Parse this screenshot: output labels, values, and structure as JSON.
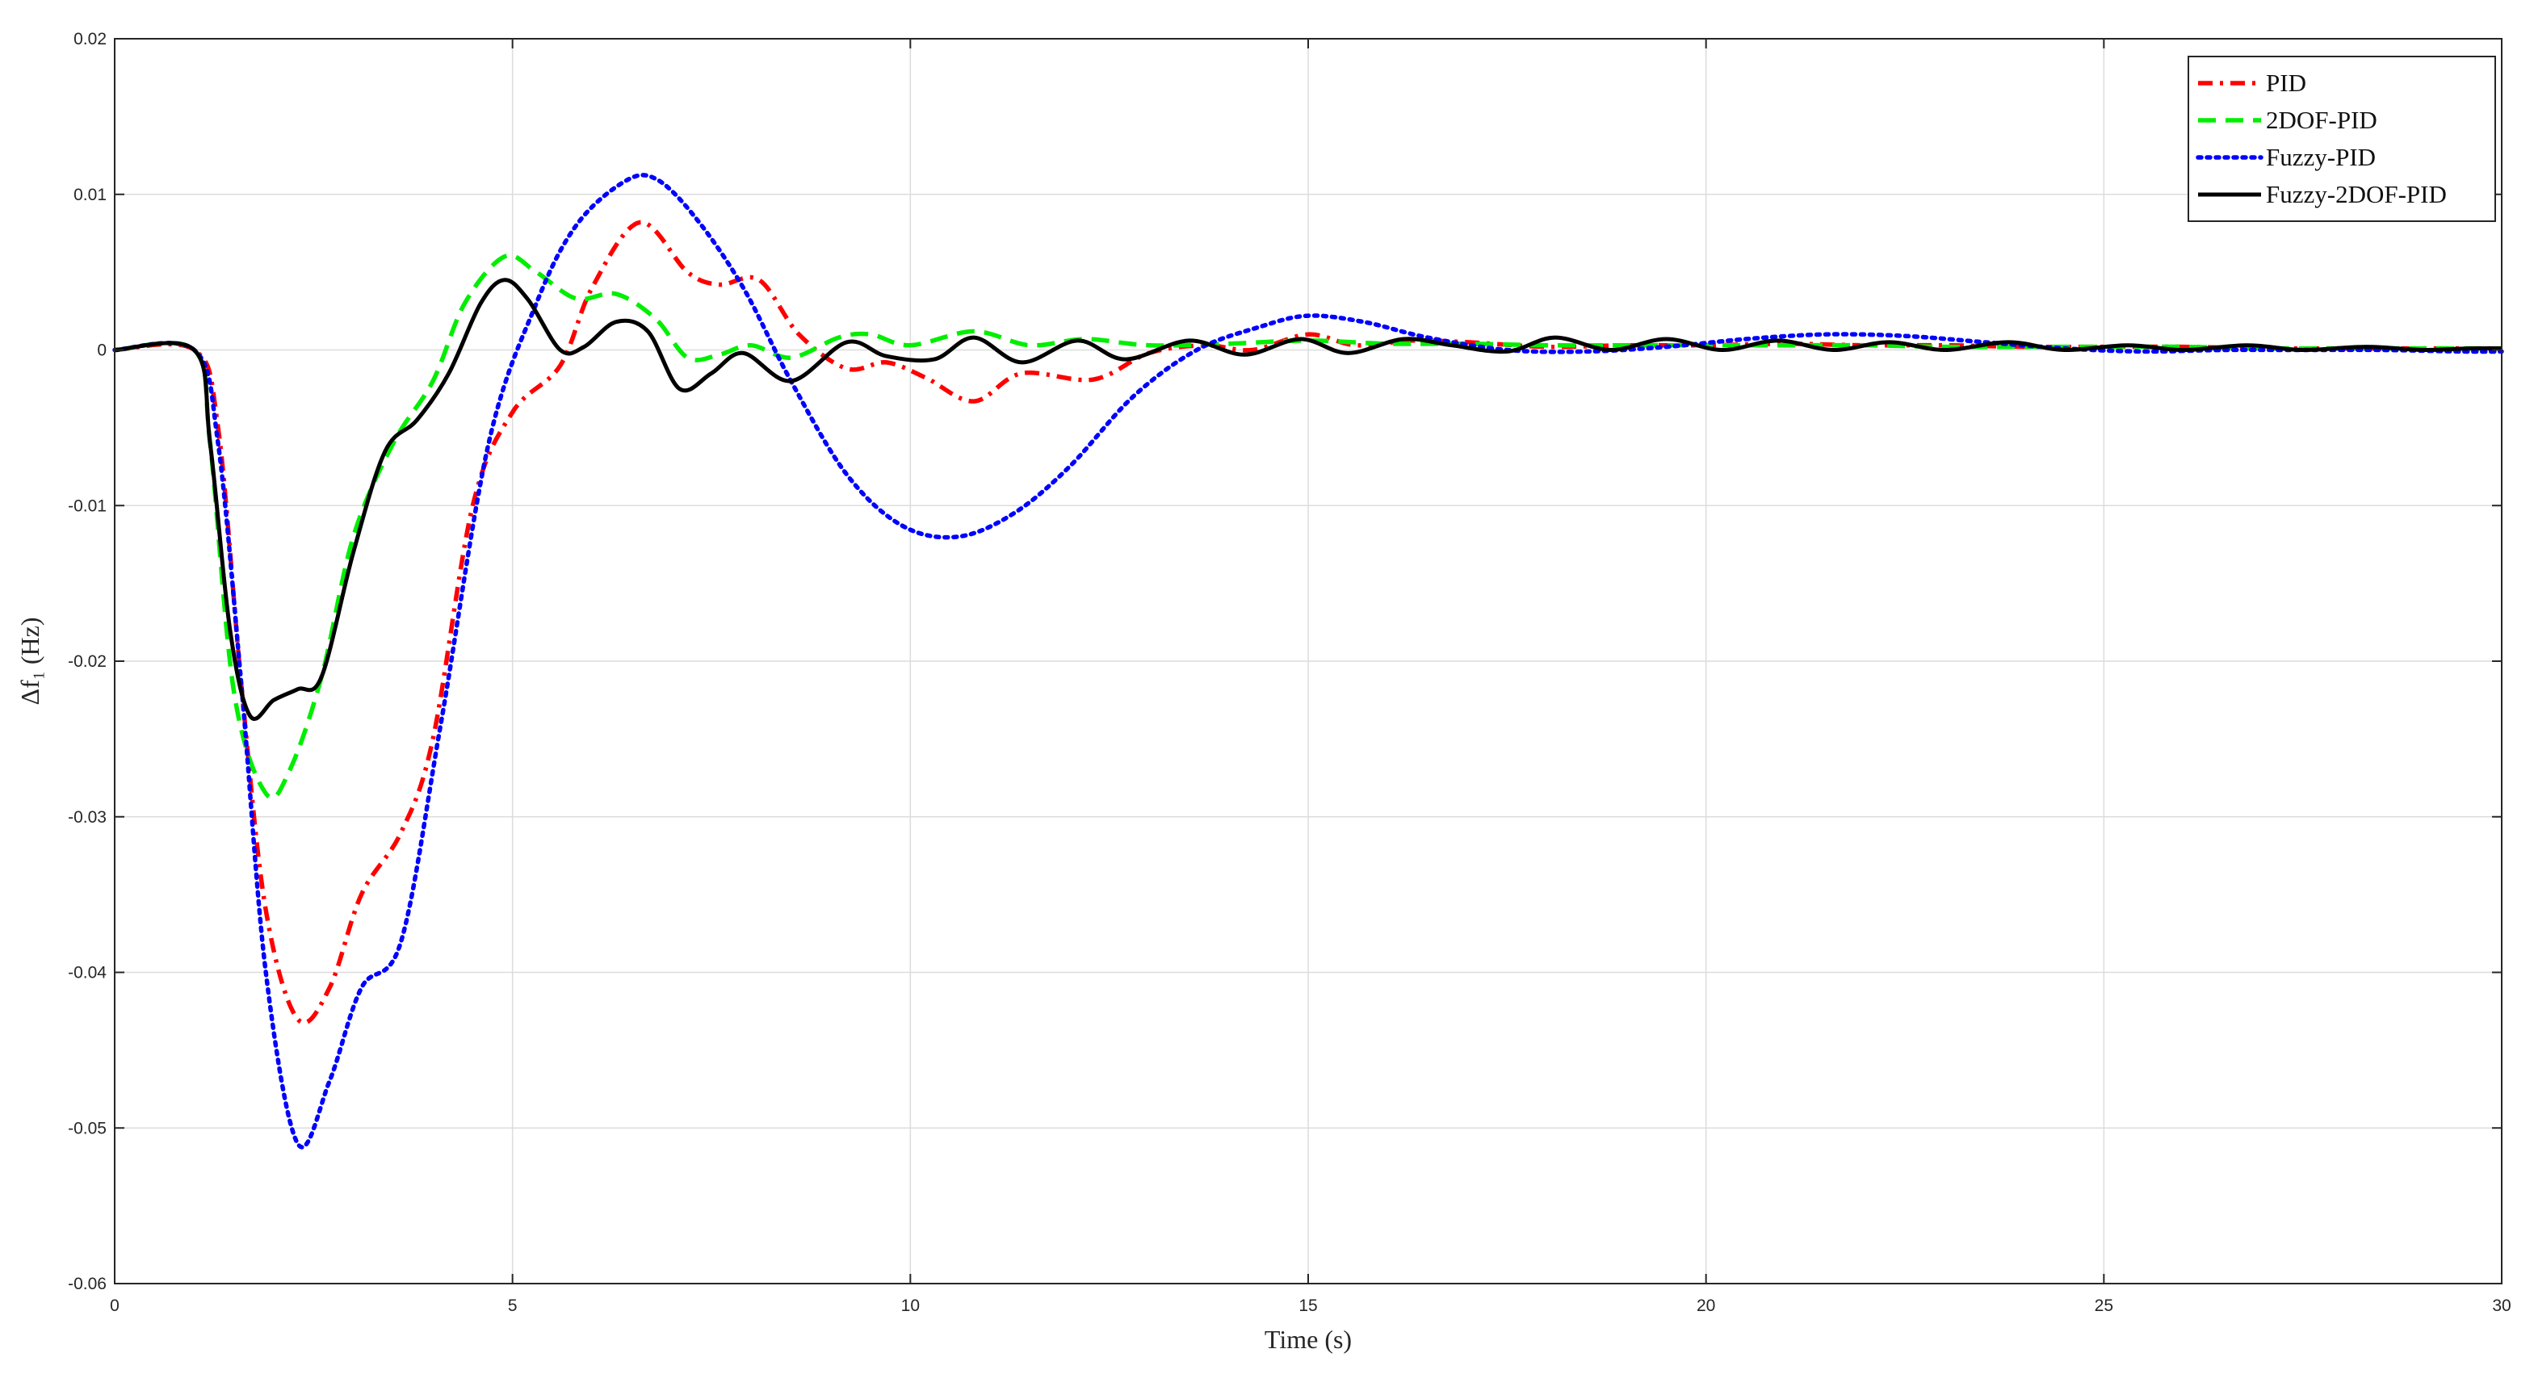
{
  "chart_data": {
    "type": "line",
    "title": "",
    "xlabel": "Time (s)",
    "ylabel": "Δf₁ (Hz)",
    "xlim": [
      0,
      30
    ],
    "ylim": [
      -0.06,
      0.02
    ],
    "xticks": [
      0,
      5,
      10,
      15,
      20,
      25,
      30
    ],
    "xtick_labels": [
      "0",
      "5",
      "10",
      "15",
      "20",
      "25",
      "30"
    ],
    "yticks": [
      -0.06,
      -0.05,
      -0.04,
      -0.03,
      -0.02,
      -0.01,
      0,
      0.01,
      0.02
    ],
    "ytick_labels": [
      "-0.06",
      "-0.05",
      "-0.04",
      "-0.03",
      "-0.02",
      "-0.01",
      "0",
      "0.01",
      "0.02"
    ],
    "grid": true,
    "legend_position": "top-right",
    "series": [
      {
        "name": "PID",
        "color": "#ff0000",
        "style": "dash-dot",
        "points": [
          [
            0,
            0
          ],
          [
            1,
            0
          ],
          [
            1.3,
            -0.005
          ],
          [
            1.6,
            -0.022
          ],
          [
            1.9,
            -0.036
          ],
          [
            2.3,
            -0.043
          ],
          [
            2.7,
            -0.041
          ],
          [
            3.1,
            -0.035
          ],
          [
            3.6,
            -0.031
          ],
          [
            4.0,
            -0.025
          ],
          [
            4.5,
            -0.01
          ],
          [
            5.0,
            -0.004
          ],
          [
            5.6,
            -0.001
          ],
          [
            6.0,
            0.004
          ],
          [
            6.6,
            0.0082
          ],
          [
            7.2,
            0.005
          ],
          [
            7.6,
            0.0042
          ],
          [
            8.1,
            0.0045
          ],
          [
            8.6,
            0.001
          ],
          [
            9.2,
            -0.0012
          ],
          [
            9.7,
            -0.0008
          ],
          [
            10.2,
            -0.0018
          ],
          [
            10.8,
            -0.0033
          ],
          [
            11.4,
            -0.0015
          ],
          [
            12.3,
            -0.0019
          ],
          [
            13.0,
            -0.0002
          ],
          [
            13.7,
            0.0003
          ],
          [
            14.3,
            0
          ],
          [
            15.0,
            0.001
          ],
          [
            15.6,
            0.0003
          ],
          [
            16.3,
            0.0006
          ],
          [
            17.0,
            0.0005
          ],
          [
            18.0,
            0.0002
          ],
          [
            19.0,
            0.0003
          ],
          [
            20.0,
            0.0003
          ],
          [
            21.0,
            0.0004
          ],
          [
            22.0,
            0.0003
          ],
          [
            23.0,
            0.0003
          ],
          [
            24.0,
            0.0002
          ],
          [
            25.0,
            0.0002
          ],
          [
            26.0,
            0.0002
          ],
          [
            27.0,
            0.0001
          ],
          [
            28.0,
            0.0001
          ],
          [
            29.0,
            0.0001
          ],
          [
            30,
            0.0001
          ]
        ]
      },
      {
        "name": "2DOF-PID",
        "color": "#00ee00",
        "style": "dashed",
        "points": [
          [
            0,
            0
          ],
          [
            1,
            0
          ],
          [
            1.2,
            -0.006
          ],
          [
            1.5,
            -0.022
          ],
          [
            1.9,
            -0.0285
          ],
          [
            2.2,
            -0.027
          ],
          [
            2.6,
            -0.021
          ],
          [
            3.0,
            -0.012
          ],
          [
            3.5,
            -0.006
          ],
          [
            4.0,
            -0.002
          ],
          [
            4.4,
            0.003
          ],
          [
            4.9,
            0.006
          ],
          [
            5.3,
            0.005
          ],
          [
            5.8,
            0.0033
          ],
          [
            6.3,
            0.0036
          ],
          [
            6.8,
            0.002
          ],
          [
            7.2,
            -0.0005
          ],
          [
            7.6,
            -0.0003
          ],
          [
            8.0,
            0.0003
          ],
          [
            8.5,
            -0.0005
          ],
          [
            9.1,
            0.0008
          ],
          [
            9.5,
            0.001
          ],
          [
            10.0,
            0.0003
          ],
          [
            10.8,
            0.0012
          ],
          [
            11.5,
            0.0003
          ],
          [
            12.2,
            0.0007
          ],
          [
            13.0,
            0.0003
          ],
          [
            14.0,
            0.0004
          ],
          [
            15.0,
            0.0006
          ],
          [
            16.0,
            0.0004
          ],
          [
            17.0,
            0.0004
          ],
          [
            18.0,
            0.0003
          ],
          [
            19.0,
            0.0003
          ],
          [
            20.0,
            0.0003
          ],
          [
            21.0,
            0.0003
          ],
          [
            22.0,
            0.0003
          ],
          [
            23.0,
            0.0002
          ],
          [
            24.0,
            0.0002
          ],
          [
            25.0,
            0.0002
          ],
          [
            26.0,
            0.0002
          ],
          [
            27.0,
            0.0001
          ],
          [
            28.0,
            0.0001
          ],
          [
            29.0,
            0.0001
          ],
          [
            30,
            0.0001
          ]
        ]
      },
      {
        "name": "Fuzzy-PID",
        "color": "#0000ff",
        "style": "dotted",
        "points": [
          [
            0,
            0
          ],
          [
            1,
            0
          ],
          [
            1.3,
            -0.006
          ],
          [
            1.6,
            -0.022
          ],
          [
            1.9,
            -0.04
          ],
          [
            2.3,
            -0.051
          ],
          [
            2.7,
            -0.047
          ],
          [
            3.1,
            -0.041
          ],
          [
            3.6,
            -0.038
          ],
          [
            4.1,
            -0.024
          ],
          [
            4.7,
            -0.006
          ],
          [
            5.3,
            0.003
          ],
          [
            5.8,
            0.008
          ],
          [
            6.4,
            0.0108
          ],
          [
            6.8,
            0.011
          ],
          [
            7.3,
            0.0085
          ],
          [
            7.9,
            0.004
          ],
          [
            8.5,
            -0.002
          ],
          [
            9.2,
            -0.008
          ],
          [
            9.9,
            -0.0113
          ],
          [
            10.6,
            -0.012
          ],
          [
            11.3,
            -0.0105
          ],
          [
            12.0,
            -0.0075
          ],
          [
            12.8,
            -0.003
          ],
          [
            13.6,
            0
          ],
          [
            14.4,
            0.0015
          ],
          [
            15.0,
            0.0022
          ],
          [
            15.7,
            0.0018
          ],
          [
            16.5,
            0.0008
          ],
          [
            17.5,
            0
          ],
          [
            18.5,
            -0.0001
          ],
          [
            19.5,
            0.0002
          ],
          [
            20.5,
            0.0007
          ],
          [
            21.5,
            0.001
          ],
          [
            22.5,
            0.0009
          ],
          [
            23.5,
            0.0005
          ],
          [
            24.5,
            0.0001
          ],
          [
            25.5,
            -0.0001
          ],
          [
            26.5,
            0
          ],
          [
            27.5,
            0
          ],
          [
            28.5,
            0
          ],
          [
            29.5,
            -0.0001
          ],
          [
            30,
            -0.0001
          ]
        ]
      },
      {
        "name": "Fuzzy-2DOF-PID",
        "color": "#000000",
        "style": "solid",
        "points": [
          [
            0,
            0
          ],
          [
            1,
            0
          ],
          [
            1.2,
            -0.006
          ],
          [
            1.45,
            -0.018
          ],
          [
            1.7,
            -0.0235
          ],
          [
            2.0,
            -0.0225
          ],
          [
            2.3,
            -0.0218
          ],
          [
            2.6,
            -0.021
          ],
          [
            3.0,
            -0.013
          ],
          [
            3.4,
            -0.0065
          ],
          [
            3.8,
            -0.0045
          ],
          [
            4.2,
            -0.0015
          ],
          [
            4.6,
            0.003
          ],
          [
            4.9,
            0.0045
          ],
          [
            5.2,
            0.0032
          ],
          [
            5.6,
            0
          ],
          [
            5.9,
            0.0002
          ],
          [
            6.3,
            0.0018
          ],
          [
            6.7,
            0.0012
          ],
          [
            7.1,
            -0.0025
          ],
          [
            7.5,
            -0.0015
          ],
          [
            7.9,
            -0.0002
          ],
          [
            8.5,
            -0.002
          ],
          [
            9.2,
            0.0005
          ],
          [
            9.7,
            -0.0004
          ],
          [
            10.3,
            -0.0006
          ],
          [
            10.8,
            0.0008
          ],
          [
            11.4,
            -0.0008
          ],
          [
            12.1,
            0.0006
          ],
          [
            12.7,
            -0.0006
          ],
          [
            13.5,
            0.0006
          ],
          [
            14.2,
            -0.0003
          ],
          [
            14.9,
            0.0007
          ],
          [
            15.5,
            -0.0002
          ],
          [
            16.2,
            0.0007
          ],
          [
            16.8,
            0.0003
          ],
          [
            17.5,
            -0.0001
          ],
          [
            18.1,
            0.0008
          ],
          [
            18.8,
            0
          ],
          [
            19.5,
            0.0007
          ],
          [
            20.2,
            0
          ],
          [
            20.9,
            0.0006
          ],
          [
            21.6,
            0
          ],
          [
            22.3,
            0.0005
          ],
          [
            23.0,
            0
          ],
          [
            23.8,
            0.0005
          ],
          [
            24.5,
            0
          ],
          [
            25.3,
            0.0003
          ],
          [
            26.0,
            0
          ],
          [
            26.8,
            0.0003
          ],
          [
            27.5,
            0
          ],
          [
            28.3,
            0.0002
          ],
          [
            29.0,
            0
          ],
          [
            29.6,
            0.0001
          ],
          [
            30,
            0.0001
          ]
        ]
      }
    ]
  }
}
